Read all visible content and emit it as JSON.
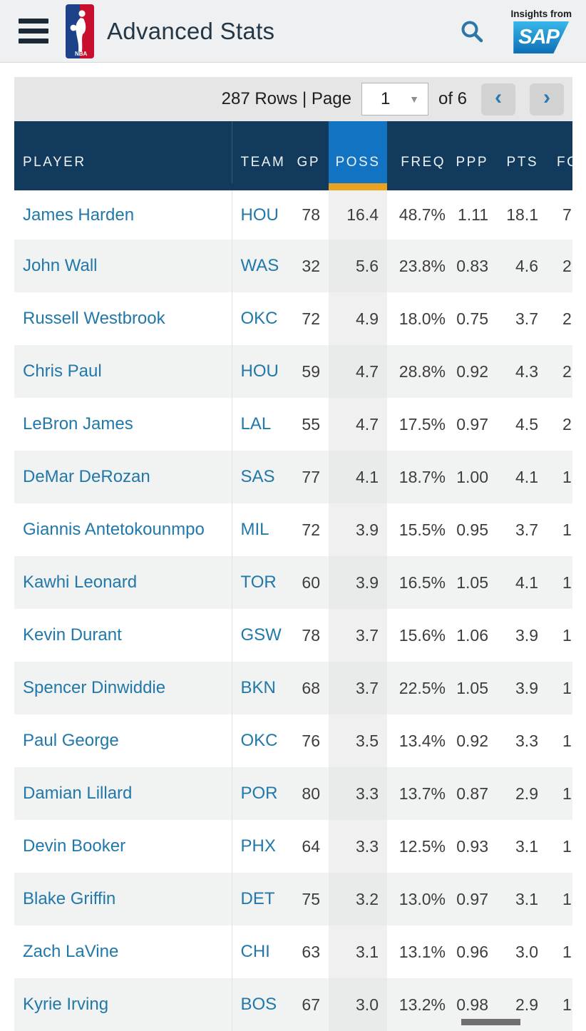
{
  "header": {
    "title": "Advanced Stats",
    "sap_tagline": "Insights from",
    "sap_logo_text": "SAP"
  },
  "icons": {
    "menu": "hamburger-icon",
    "nba": "nba-logo",
    "search": "magnifying-glass-icon",
    "dropdown_caret": "▼",
    "chevron_left": "‹",
    "chevron_right": "›"
  },
  "pagination": {
    "rows_page_label": "287 Rows | Page",
    "page_value": "1",
    "of_label": "of 6"
  },
  "table": {
    "columns": [
      {
        "key": "player",
        "label": "PLAYER"
      },
      {
        "key": "team",
        "label": "TEAM"
      },
      {
        "key": "gp",
        "label": "GP"
      },
      {
        "key": "poss",
        "label": "POSS",
        "highlighted": true,
        "sorted": true
      },
      {
        "key": "freq",
        "label": "FREQ"
      },
      {
        "key": "ppp",
        "label": "PPP"
      },
      {
        "key": "pts",
        "label": "PTS"
      },
      {
        "key": "fg",
        "label": "FG",
        "truncated": true
      }
    ],
    "rows": [
      [
        "James Harden",
        "HOU",
        "78",
        "16.4",
        "48.7%",
        "1.11",
        "18.1",
        "7"
      ],
      [
        "John Wall",
        "WAS",
        "32",
        "5.6",
        "23.8%",
        "0.83",
        "4.6",
        "2"
      ],
      [
        "Russell Westbrook",
        "OKC",
        "72",
        "4.9",
        "18.0%",
        "0.75",
        "3.7",
        "2"
      ],
      [
        "Chris Paul",
        "HOU",
        "59",
        "4.7",
        "28.8%",
        "0.92",
        "4.3",
        "2"
      ],
      [
        "LeBron James",
        "LAL",
        "55",
        "4.7",
        "17.5%",
        "0.97",
        "4.5",
        "2"
      ],
      [
        "DeMar DeRozan",
        "SAS",
        "77",
        "4.1",
        "18.7%",
        "1.00",
        "4.1",
        "1"
      ],
      [
        "Giannis Antetokounmpo",
        "MIL",
        "72",
        "3.9",
        "15.5%",
        "0.95",
        "3.7",
        "1"
      ],
      [
        "Kawhi Leonard",
        "TOR",
        "60",
        "3.9",
        "16.5%",
        "1.05",
        "4.1",
        "1"
      ],
      [
        "Kevin Durant",
        "GSW",
        "78",
        "3.7",
        "15.6%",
        "1.06",
        "3.9",
        "1"
      ],
      [
        "Spencer Dinwiddie",
        "BKN",
        "68",
        "3.7",
        "22.5%",
        "1.05",
        "3.9",
        "1"
      ],
      [
        "Paul George",
        "OKC",
        "76",
        "3.5",
        "13.4%",
        "0.92",
        "3.3",
        "1"
      ],
      [
        "Damian Lillard",
        "POR",
        "80",
        "3.3",
        "13.7%",
        "0.87",
        "2.9",
        "1"
      ],
      [
        "Devin Booker",
        "PHX",
        "64",
        "3.3",
        "12.5%",
        "0.93",
        "3.1",
        "1"
      ],
      [
        "Blake Griffin",
        "DET",
        "75",
        "3.2",
        "13.0%",
        "0.97",
        "3.1",
        "1"
      ],
      [
        "Zach LaVine",
        "CHI",
        "63",
        "3.1",
        "13.1%",
        "0.96",
        "3.0",
        "1"
      ],
      [
        "Kyrie Irving",
        "BOS",
        "67",
        "3.0",
        "13.2%",
        "0.98",
        "2.9",
        "1"
      ]
    ]
  },
  "colors": {
    "appbar_bg": "#eff0f1",
    "header_navy": "#123a5c",
    "sorted_column_blue": "#1273c2",
    "sorted_underline_orange": "#eaa321",
    "link_blue": "#2178a9",
    "row_alt": "#f1f2f2",
    "nba_blue": "#1d428a",
    "nba_red": "#c8102e",
    "sap_gradient_top": "#38b7e9",
    "sap_gradient_bottom": "#0d6fb7"
  }
}
